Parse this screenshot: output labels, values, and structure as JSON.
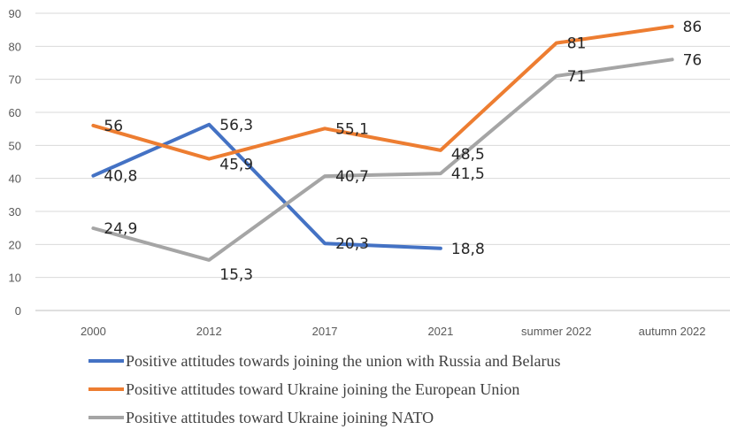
{
  "chart_data": {
    "type": "line",
    "categories": [
      "2000",
      "2012",
      "2017",
      "2021",
      "summer 2022",
      "autumn 2022"
    ],
    "ylim": [
      0,
      90
    ],
    "yticks": [
      "0",
      "10",
      "20",
      "30",
      "40",
      "50",
      "60",
      "70",
      "80",
      "90"
    ],
    "grid": true,
    "legend_position": "bottom",
    "series": [
      {
        "name": "Positive attitudes towards joining the union with Russia and Belarus",
        "color": "#4472c4",
        "values": [
          40.8,
          56.3,
          20.3,
          18.8,
          null,
          null
        ],
        "labels": [
          "40,8",
          "56,3",
          "20,3",
          "18,8",
          "",
          ""
        ]
      },
      {
        "name": "Positive attitudes toward Ukraine joining the European Union",
        "color": "#ed7d31",
        "values": [
          56,
          45.9,
          55.1,
          48.5,
          81,
          86
        ],
        "labels": [
          "56",
          "45,9",
          "55,1",
          "48,5",
          "81",
          "86"
        ]
      },
      {
        "name": "Positive attitudes toward Ukraine joining NATO",
        "color": "#a5a5a5",
        "values": [
          24.9,
          15.3,
          40.7,
          41.5,
          71,
          76
        ],
        "labels": [
          "24,9",
          "15,3",
          "40,7",
          "41,5",
          "71",
          "76"
        ]
      }
    ]
  }
}
